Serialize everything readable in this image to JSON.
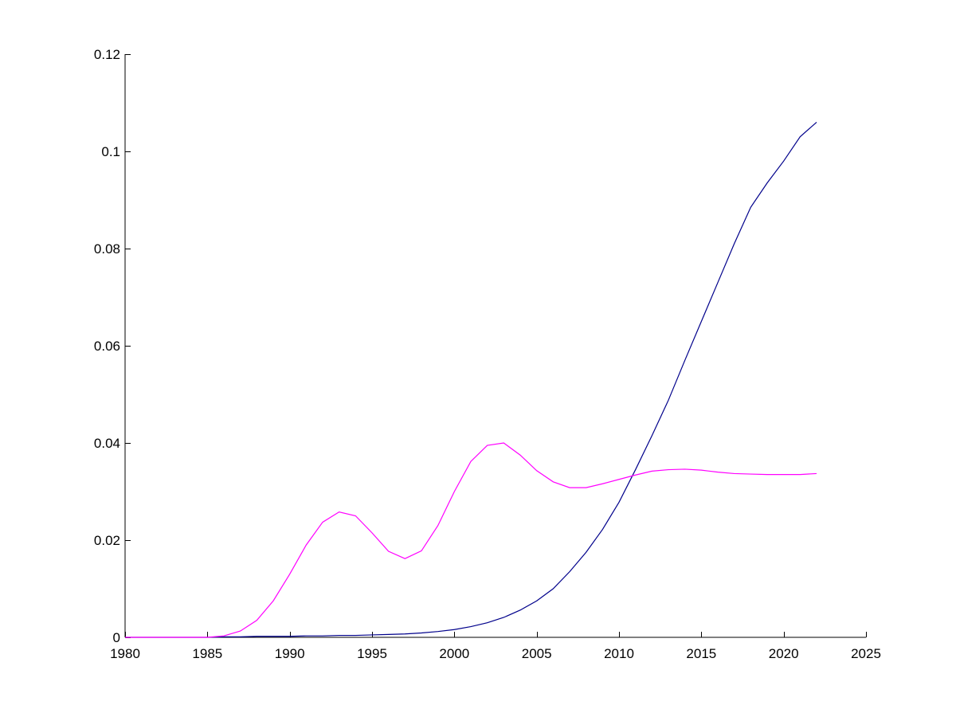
{
  "chart_data": {
    "type": "line",
    "title": "",
    "xlabel": "",
    "ylabel": "",
    "xlim": [
      1980,
      2025
    ],
    "ylim": [
      0,
      0.12
    ],
    "grid": false,
    "legend": "none",
    "x_ticks": [
      1980,
      1985,
      1990,
      1995,
      2000,
      2005,
      2010,
      2015,
      2020,
      2025
    ],
    "x_tick_labels": [
      "1980",
      "1985",
      "1990",
      "1995",
      "2000",
      "2005",
      "2010",
      "2015",
      "2020",
      "2025"
    ],
    "y_ticks": [
      0,
      0.02,
      0.04,
      0.06,
      0.08,
      0.1,
      0.12
    ],
    "y_tick_labels": [
      "0",
      "0.02",
      "0.04",
      "0.06",
      "0.08",
      "0.1",
      "0.12"
    ],
    "series": [
      {
        "color": "#00008b",
        "x": [
          1980,
          1981,
          1982,
          1983,
          1984,
          1985,
          1986,
          1987,
          1988,
          1989,
          1990,
          1991,
          1992,
          1993,
          1994,
          1995,
          1996,
          1997,
          1998,
          1999,
          2000,
          2001,
          2002,
          2003,
          2004,
          2005,
          2006,
          2007,
          2008,
          2009,
          2010,
          2011,
          2012,
          2013,
          2014,
          2015,
          2016,
          2017,
          2018,
          2019,
          2020,
          2021,
          2022
        ],
        "y": [
          0,
          0,
          0,
          0,
          0,
          0,
          0.0001,
          0.0001,
          0.0002,
          0.0002,
          0.0002,
          0.0003,
          0.0003,
          0.0004,
          0.0004,
          0.0005,
          0.0006,
          0.0007,
          0.0009,
          0.0012,
          0.0016,
          0.0022,
          0.003,
          0.0041,
          0.0056,
          0.0075,
          0.01,
          0.0135,
          0.0175,
          0.0222,
          0.0278,
          0.0345,
          0.0415,
          0.0488,
          0.057,
          0.065,
          0.073,
          0.081,
          0.0885,
          0.0935,
          0.098,
          0.103,
          0.106
        ]
      },
      {
        "color": "#ff00ff",
        "x": [
          1980,
          1981,
          1982,
          1983,
          1984,
          1985,
          1986,
          1987,
          1988,
          1989,
          1990,
          1991,
          1992,
          1993,
          1994,
          1995,
          1996,
          1997,
          1998,
          1999,
          2000,
          2001,
          2002,
          2003,
          2004,
          2005,
          2006,
          2007,
          2008,
          2009,
          2010,
          2011,
          2012,
          2013,
          2014,
          2015,
          2016,
          2017,
          2018,
          2019,
          2020,
          2021,
          2022
        ],
        "y": [
          0,
          0,
          0,
          0,
          0,
          0,
          0.0003,
          0.0013,
          0.0035,
          0.0075,
          0.013,
          0.019,
          0.0237,
          0.0258,
          0.025,
          0.0215,
          0.0177,
          0.0162,
          0.0178,
          0.023,
          0.03,
          0.0362,
          0.0395,
          0.04,
          0.0375,
          0.0343,
          0.032,
          0.0308,
          0.0308,
          0.0316,
          0.0325,
          0.0334,
          0.0342,
          0.0345,
          0.0346,
          0.0344,
          0.034,
          0.0337,
          0.0336,
          0.0335,
          0.0335,
          0.0335,
          0.0337
        ]
      }
    ]
  }
}
